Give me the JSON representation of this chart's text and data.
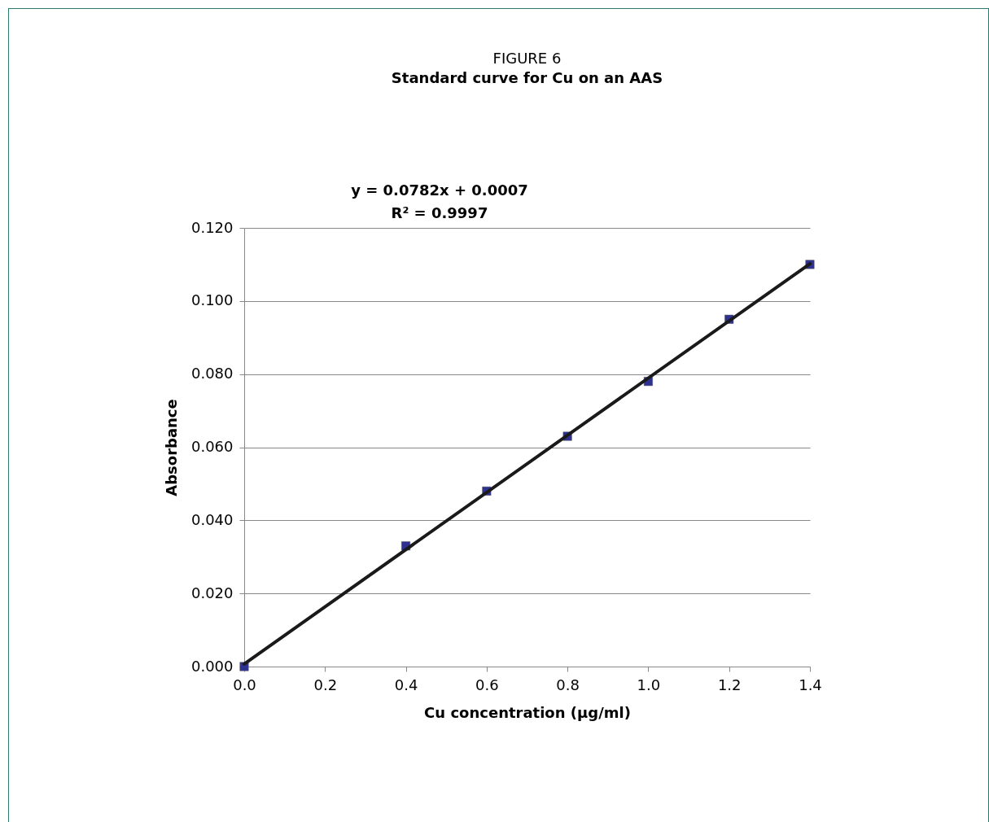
{
  "chart_data": {
    "type": "scatter",
    "title": "FIGURE 6",
    "subtitle": "Standard curve for Cu on an AAS",
    "xlabel": "Cu concentration (µg/ml)",
    "ylabel": "Absorbance",
    "annotations": [
      "y = 0.0782x + 0.0007",
      "R² = 0.9997"
    ],
    "grid": "y",
    "xlim": [
      0,
      1.4
    ],
    "xticks": [
      {
        "value": 0,
        "label": "0.0"
      },
      0.2,
      0.4,
      0.6,
      0.8,
      {
        "value": 1,
        "label": "1.0"
      },
      1.2,
      1.4
    ],
    "ylim": [
      0,
      0.12
    ],
    "yticks": [
      {
        "value": 0,
        "label": "0.000"
      },
      {
        "value": 0.02,
        "label": "0.020"
      },
      {
        "value": 0.04,
        "label": "0.040"
      },
      {
        "value": 0.06,
        "label": "0.060"
      },
      {
        "value": 0.08,
        "label": "0.080"
      },
      {
        "value": 0.1,
        "label": "0.100"
      },
      {
        "value": 0.12,
        "label": "0.120"
      }
    ],
    "series": [
      {
        "marker": "square",
        "color": "#2e3192",
        "x": [
          0,
          0.4,
          0.6,
          0.8,
          1.0,
          1.2,
          1.4
        ],
        "values": [
          0,
          0.033,
          0.048,
          0.063,
          0.078,
          0.095,
          0.11
        ]
      },
      {
        "type": "line",
        "marker": "none",
        "color": "#1a1a1a",
        "line_style": "solid",
        "x": [
          0,
          1.4
        ],
        "values": [
          0.0007,
          0.1102
        ]
      }
    ]
  }
}
